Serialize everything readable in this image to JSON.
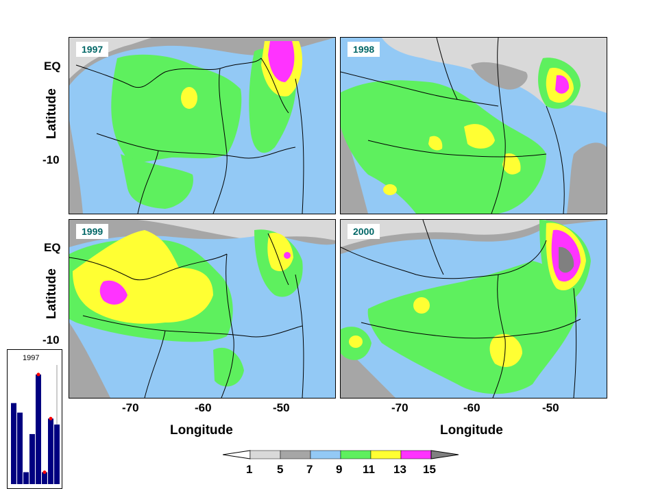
{
  "panels": [
    {
      "year": "1997"
    },
    {
      "year": "1998"
    },
    {
      "year": "1999"
    },
    {
      "year": "2000"
    }
  ],
  "axes": {
    "ylabel": "Latitude",
    "xlabel": "Longitude",
    "lat_ticks": [
      "EQ",
      "-10"
    ],
    "lon_ticks": [
      "-70",
      "-60",
      "-50"
    ]
  },
  "colorbar": {
    "labels": [
      "1",
      "5",
      "7",
      "9",
      "11",
      "13",
      "15"
    ],
    "colors": [
      "#d9d9d9",
      "#a6a6a6",
      "#93c9f5",
      "#5ef05e",
      "#ffff33",
      "#ff33ff"
    ],
    "end_colors": [
      "#ffffff",
      "#808080"
    ]
  },
  "inset": {
    "label": "1997",
    "bar_color": "#000080",
    "marker_color": "#ff0000",
    "values": [
      0.68,
      0.6,
      0.1,
      0.42,
      0.92,
      0.1,
      0.55,
      0.5
    ]
  },
  "colors": {
    "ocean_gray": "#a6a6a6",
    "light_gray": "#d9d9d9",
    "blue": "#93c9f5",
    "green": "#5ef05e",
    "yellow": "#ffff33",
    "magenta": "#ff33ff",
    "dark_gray": "#808080",
    "label_text": "#006666"
  }
}
